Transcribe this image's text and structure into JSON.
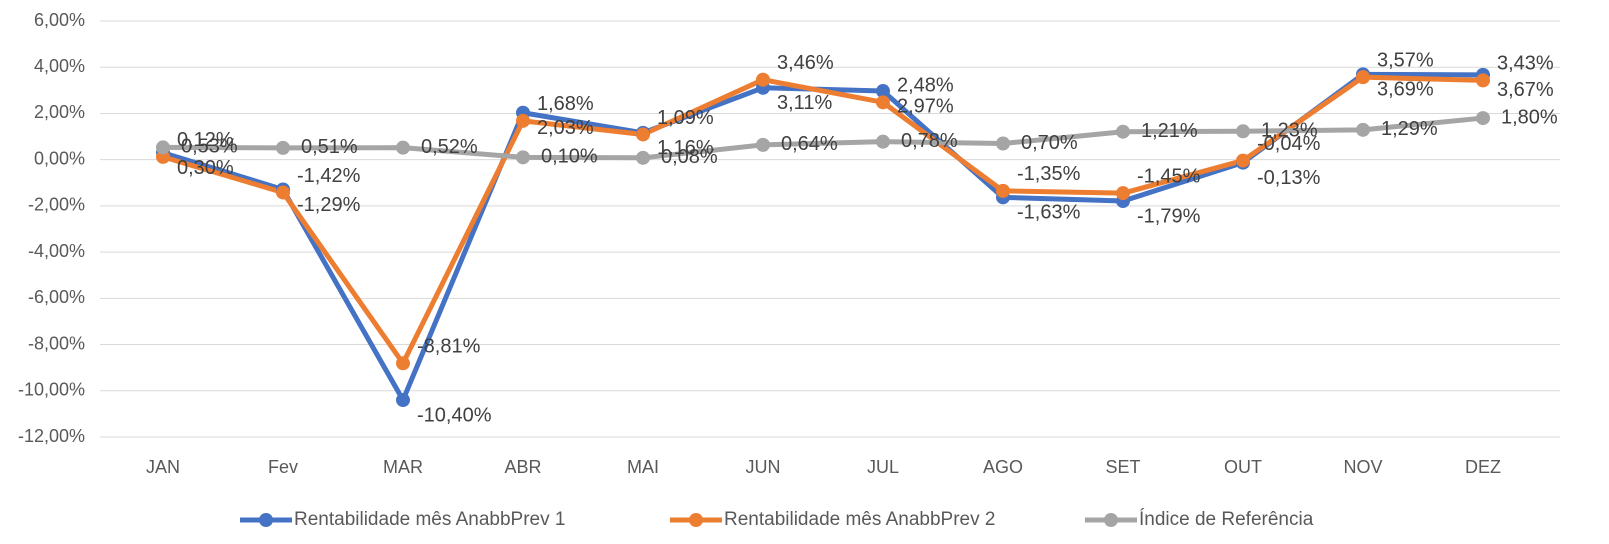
{
  "chart_data": {
    "type": "line",
    "categories": [
      "JAN",
      "Fev",
      "MAR",
      "ABR",
      "MAI",
      "JUN",
      "JUL",
      "AGO",
      "SET",
      "OUT",
      "NOV",
      "DEZ"
    ],
    "series": [
      {
        "name": "Rentabilidade mês  AnabbPrev 1",
        "color": "#4472c4",
        "values": [
          0.3,
          -1.29,
          -10.4,
          2.03,
          1.16,
          3.11,
          2.97,
          -1.63,
          -1.79,
          -0.13,
          3.69,
          3.67
        ],
        "value_labels": [
          "0,30%",
          "-1,29%",
          "-10,40%",
          "2,03%",
          "1,16%",
          "3,11%",
          "2,97%",
          "-1,63%",
          "-1,79%",
          "-0,13%",
          "3,69%",
          "3,67%"
        ]
      },
      {
        "name": "Rentabilidade mês  AnabbPrev 2",
        "color": "#ed7d31",
        "values": [
          0.12,
          -1.42,
          -8.81,
          1.68,
          1.09,
          3.46,
          2.48,
          -1.35,
          -1.45,
          -0.04,
          3.57,
          3.43
        ],
        "value_labels": [
          "0,12%",
          "-1,42%",
          "-8,81%",
          "1,68%",
          "1,09%",
          "3,46%",
          "2,48%",
          "-1,35%",
          "-1,45%",
          "-0,04%",
          "3,57%",
          "3,43%"
        ]
      },
      {
        "name": "Índice de Referência",
        "color": "#a5a5a5",
        "values": [
          0.53,
          0.51,
          0.52,
          0.1,
          0.08,
          0.64,
          0.78,
          0.7,
          1.21,
          1.23,
          1.29,
          1.8
        ],
        "value_labels": [
          "0,53%",
          "0,51%",
          "0,52%",
          "0,10%",
          "0,08%",
          "0,64%",
          "0,78%",
          "0,70%",
          "1,21%",
          "1,23%",
          "1,29%",
          "1,80%"
        ]
      }
    ],
    "ylim": [
      -12,
      6
    ],
    "yticks": [
      {
        "value": -12,
        "label": "-12,00%"
      },
      {
        "value": -10,
        "label": "-10,00%"
      },
      {
        "value": -8,
        "label": "-8,00%"
      },
      {
        "value": -6,
        "label": "-6,00%"
      },
      {
        "value": -4,
        "label": "-4,00%"
      },
      {
        "value": -2,
        "label": "-2,00%"
      },
      {
        "value": 0,
        "label": "0,00%"
      },
      {
        "value": 2,
        "label": "2,00%"
      },
      {
        "value": 4,
        "label": "4,00%"
      },
      {
        "value": 6,
        "label": "6,00%"
      }
    ],
    "grid": true,
    "legend": "bottom"
  }
}
